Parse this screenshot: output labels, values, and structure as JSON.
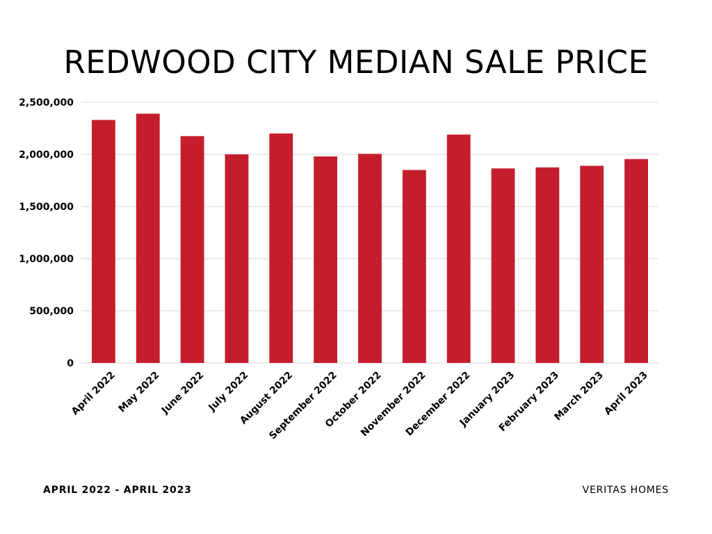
{
  "chart_data": {
    "type": "bar",
    "title": "REDWOOD CITY MEDIAN SALE PRICE",
    "categories": [
      "April 2022",
      "May 2022",
      "June 2022",
      "July 2022",
      "August 2022",
      "September 2022",
      "October 2022",
      "November 2022",
      "December 2022",
      "January 2023",
      "February 2023",
      "March 2023",
      "April 2023"
    ],
    "values": [
      2330000,
      2390000,
      2175000,
      2000000,
      2200000,
      1980000,
      2005000,
      1850000,
      2190000,
      1865000,
      1875000,
      1890000,
      1955000
    ],
    "yticks": [
      "0",
      "500,000",
      "1,000,000",
      "1,500,000",
      "2,000,000",
      "2,500,000"
    ],
    "ylim": [
      0,
      2500000
    ],
    "xlabel": "",
    "ylabel": "",
    "grid": true,
    "bar_color": "#c41e2d"
  },
  "footer": {
    "left": "APRIL 2022 - APRIL 2023",
    "right": "VERITAS HOMES"
  }
}
